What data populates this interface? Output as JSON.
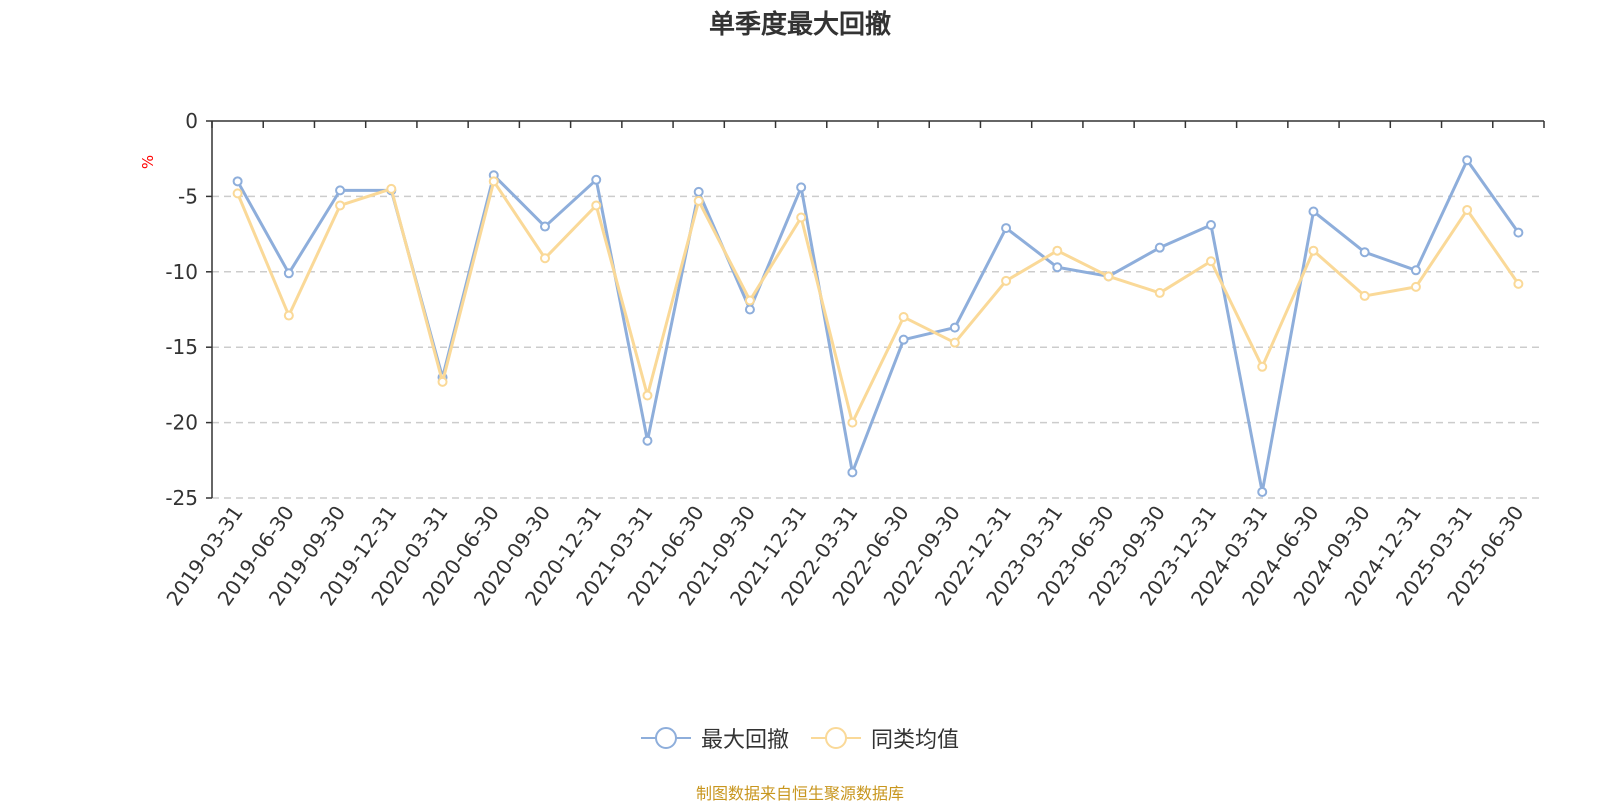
{
  "title": "单季度最大回撤",
  "footer": "制图数据来自恒生聚源数据库",
  "chart_data": {
    "type": "line",
    "title": "单季度最大回撤",
    "ylabel": "%",
    "xlabel": "",
    "ylim": [
      -25,
      0
    ],
    "yticks": [
      0,
      -5,
      -10,
      -15,
      -20,
      -25
    ],
    "grid": true,
    "legend_position": "bottom-center",
    "categories": [
      "2019-03-31",
      "2019-06-30",
      "2019-09-30",
      "2019-12-31",
      "2020-03-31",
      "2020-06-30",
      "2020-09-30",
      "2020-12-31",
      "2021-03-31",
      "2021-06-30",
      "2021-09-30",
      "2021-12-31",
      "2022-03-31",
      "2022-06-30",
      "2022-09-30",
      "2022-12-31",
      "2023-03-31",
      "2023-06-30",
      "2023-09-30",
      "2023-12-31",
      "2024-03-31",
      "2024-06-30",
      "2024-09-30",
      "2024-12-31",
      "2025-03-31",
      "2025-06-30"
    ],
    "series": [
      {
        "name": "最大回撤",
        "color": "#8eaedb",
        "values": [
          -4.0,
          -10.1,
          -4.6,
          -4.6,
          -17.0,
          -3.6,
          -7.0,
          -3.9,
          -21.2,
          -4.7,
          -12.5,
          -4.4,
          -23.3,
          -14.5,
          -13.7,
          -7.1,
          -9.7,
          -10.3,
          -8.4,
          -6.9,
          -24.6,
          -6.0,
          -8.7,
          -9.9,
          -2.6,
          -7.4
        ]
      },
      {
        "name": "同类均值",
        "color": "#fad998",
        "values": [
          -4.8,
          -12.9,
          -5.6,
          -4.5,
          -17.3,
          -4.0,
          -9.1,
          -5.6,
          -18.2,
          -5.3,
          -11.9,
          -6.4,
          -20.0,
          -13.0,
          -14.7,
          -10.6,
          -8.6,
          -10.3,
          -11.4,
          -9.3,
          -16.3,
          -8.6,
          -11.6,
          -11.0,
          -5.9,
          -10.8
        ]
      }
    ]
  }
}
